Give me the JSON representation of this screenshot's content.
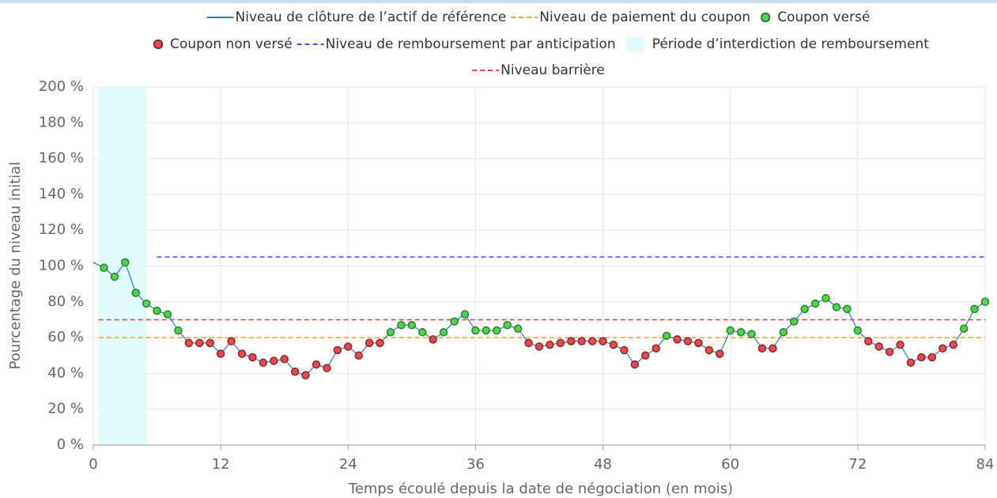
{
  "chart_data": {
    "type": "line",
    "xlabel": "Temps écoulé depuis la date de négociation (en mois)",
    "ylabel": "Pourcentage du niveau initial",
    "xlim": [
      0,
      84
    ],
    "xticks": [
      0,
      12,
      24,
      36,
      48,
      60,
      72,
      84
    ],
    "ylim": [
      0,
      200
    ],
    "yticks": [
      {
        "value": 0,
        "label": "0 %"
      },
      {
        "value": 20,
        "label": "20 %"
      },
      {
        "value": 40,
        "label": "40 %"
      },
      {
        "value": 60,
        "label": "60 %"
      },
      {
        "value": 80,
        "label": "80 %"
      },
      {
        "value": 100,
        "label": "100 %"
      },
      {
        "value": 120,
        "label": "120 %"
      },
      {
        "value": 140,
        "label": "140 %"
      },
      {
        "value": 160,
        "label": "160 %"
      },
      {
        "value": 180,
        "label": "180 %"
      },
      {
        "value": 200,
        "label": "200 %"
      }
    ],
    "grid": true,
    "legend": "top",
    "series": [
      {
        "name": "Niveau de clôture de l’actif de référence",
        "type": "line",
        "color": "#2a7ab8",
        "x": [
          0,
          1,
          2,
          3,
          4,
          5,
          6,
          7,
          8,
          9,
          10,
          11,
          12,
          13,
          14,
          15,
          16,
          17,
          18,
          19,
          20,
          21,
          22,
          23,
          24,
          25,
          26,
          27,
          28,
          29,
          30,
          31,
          32,
          33,
          34,
          35,
          36,
          37,
          38,
          39,
          40,
          41,
          42,
          43,
          44,
          45,
          46,
          47,
          48,
          49,
          50,
          51,
          52,
          53,
          54,
          55,
          56,
          57,
          58,
          59,
          60,
          61,
          62,
          63,
          64,
          65,
          66,
          67,
          68,
          69,
          70,
          71,
          72,
          73,
          74,
          75,
          76,
          77,
          78,
          79,
          80,
          81,
          82,
          83,
          84
        ],
        "values": [
          102,
          99,
          94,
          102,
          85,
          79,
          75,
          73,
          64,
          57,
          57,
          57,
          51,
          58,
          51,
          49,
          46,
          47,
          48,
          41,
          39,
          45,
          43,
          53,
          55,
          50,
          57,
          57,
          63,
          67,
          67,
          63,
          59,
          63,
          69,
          73,
          64,
          64,
          64,
          67,
          65,
          57,
          55,
          56,
          57,
          58,
          58,
          58,
          58,
          56,
          53,
          45,
          50,
          54,
          61,
          59,
          58,
          57,
          53,
          51,
          64,
          63,
          62,
          54,
          54,
          63,
          69,
          76,
          79,
          82,
          77,
          76,
          64,
          58,
          55,
          52,
          56,
          46,
          49,
          49,
          54,
          56,
          65,
          76,
          80
        ]
      },
      {
        "name": "Niveau de paiement du coupon",
        "type": "level",
        "dash": true,
        "color": "#f0a020",
        "x": [
          0.5,
          84
        ],
        "values": [
          60,
          60
        ]
      },
      {
        "name": "Coupon versé",
        "type": "scatter",
        "color": "#4cd64c",
        "edge": "#2e7d32",
        "x": [
          1,
          2,
          3,
          4,
          5,
          6,
          7,
          8,
          28,
          29,
          30,
          31,
          33,
          34,
          35,
          36,
          37,
          38,
          39,
          40,
          54,
          60,
          61,
          62,
          65,
          66,
          67,
          68,
          69,
          70,
          71,
          72,
          82,
          83,
          84
        ],
        "values": [
          99,
          94,
          102,
          85,
          79,
          75,
          73,
          64,
          63,
          67,
          67,
          63,
          63,
          69,
          73,
          64,
          64,
          64,
          67,
          65,
          61,
          64,
          63,
          62,
          63,
          69,
          76,
          79,
          82,
          77,
          76,
          64,
          65,
          76,
          80
        ]
      },
      {
        "name": "Coupon non versé",
        "type": "scatter",
        "color": "#f04848",
        "edge": "#7a2a3a",
        "x": [
          9,
          10,
          11,
          12,
          13,
          14,
          15,
          16,
          17,
          18,
          19,
          20,
          21,
          22,
          23,
          24,
          25,
          26,
          27,
          32,
          41,
          42,
          43,
          44,
          45,
          46,
          47,
          48,
          49,
          50,
          51,
          52,
          53,
          55,
          56,
          57,
          58,
          59,
          63,
          64,
          73,
          74,
          75,
          76,
          77,
          78,
          79,
          80,
          81
        ],
        "values": [
          57,
          57,
          57,
          51,
          58,
          51,
          49,
          46,
          47,
          48,
          41,
          39,
          45,
          43,
          53,
          55,
          50,
          57,
          57,
          59,
          57,
          55,
          56,
          57,
          58,
          58,
          58,
          58,
          56,
          53,
          45,
          50,
          54,
          59,
          58,
          57,
          53,
          51,
          54,
          54,
          58,
          55,
          52,
          56,
          46,
          49,
          49,
          54,
          56
        ]
      },
      {
        "name": "Niveau de remboursement par anticipation",
        "type": "level",
        "dash": true,
        "color": "#4a4ae8",
        "x": [
          6,
          84
        ],
        "values": [
          105,
          105
        ]
      },
      {
        "name": "Période d’interdiction de remboursement",
        "type": "band",
        "color": "#e0fcfc",
        "x": [
          0.5,
          5
        ]
      },
      {
        "name": "Niveau barrière",
        "type": "level",
        "dash": true,
        "color": "#e04040",
        "x": [
          0.5,
          84
        ],
        "values": [
          70,
          70
        ]
      }
    ]
  }
}
